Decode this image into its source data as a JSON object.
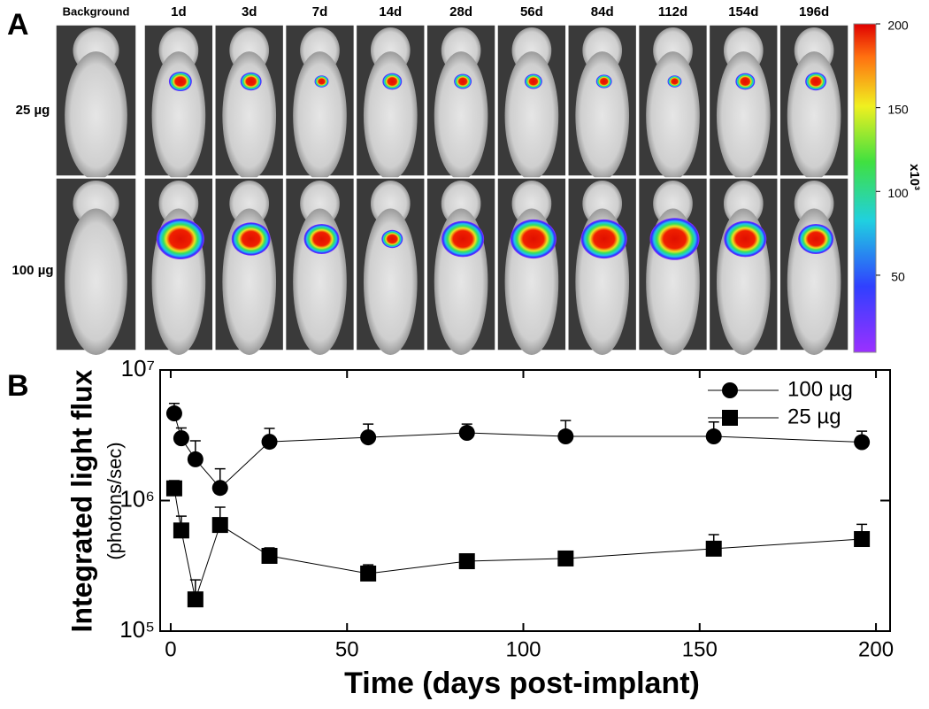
{
  "panel_a": {
    "label": "A",
    "columns": [
      "Background",
      "1d",
      "3d",
      "7d",
      "14d",
      "28d",
      "56d",
      "84d",
      "112d",
      "154d",
      "196d"
    ],
    "rows": [
      "25 µg",
      "100 µg"
    ],
    "colorbar": {
      "lim": [
        4,
        200
      ],
      "ticks": [
        50,
        100,
        150,
        200
      ],
      "unit": "x10³"
    }
  },
  "chart_data": {
    "type": "line",
    "label": "B",
    "x_label": "Time (days post-implant)",
    "y_label": "Integrated light flux",
    "y_label_sub": "(photons/sec)",
    "x": [
      1,
      3,
      7,
      14,
      28,
      56,
      84,
      112,
      154,
      196
    ],
    "series": [
      {
        "name": "100 µg",
        "color": "#000000",
        "marker": "circle",
        "values": [
          4650000,
          3000000,
          2070000,
          1250000,
          2820000,
          3050000,
          3300000,
          3100000,
          3100000,
          2800000
        ],
        "errors": [
          900000,
          600000,
          800000,
          500000,
          750000,
          800000,
          550000,
          1000000,
          900000,
          600000
        ]
      },
      {
        "name": "25 µg",
        "color": "#000000",
        "marker": "square",
        "values": [
          1240000,
          590000,
          175000,
          650000,
          377000,
          276000,
          343000,
          360000,
          428000,
          507000
        ],
        "errors": [
          180000,
          170000,
          72000,
          240000,
          57000,
          46000,
          30000,
          30000,
          120000,
          150000
        ]
      }
    ],
    "xlim": [
      -3,
      204
    ],
    "xticks": [
      0,
      50,
      100,
      150,
      200
    ],
    "ylim": [
      100000,
      10000000
    ],
    "log_y": true,
    "yticks": [
      {
        "value": 100000,
        "label": "10⁵"
      },
      {
        "value": 1000000,
        "label": "10⁶"
      },
      {
        "value": 10000000,
        "label": "10⁷"
      }
    ],
    "legend": "top-right"
  }
}
